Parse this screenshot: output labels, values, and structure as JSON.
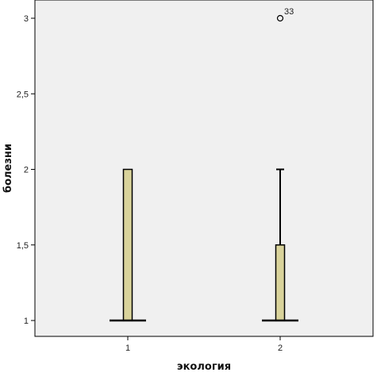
{
  "chart_data": {
    "type": "boxplot",
    "xlabel": "экология",
    "ylabel": "болезни",
    "categories": [
      "1",
      "2"
    ],
    "y_ticks": [
      "1",
      "1,5",
      "2",
      "2,5",
      "3"
    ],
    "y_tick_values": [
      1,
      1.5,
      2,
      2.5,
      3
    ],
    "ylim": [
      0.9,
      3.1
    ],
    "grid": false,
    "boxes": [
      {
        "category": "1",
        "min": 1,
        "q1": 1,
        "median": 1,
        "q3": 2,
        "max": 2,
        "outliers": []
      },
      {
        "category": "2",
        "min": 1,
        "q1": 1,
        "median": 1,
        "q3": 1.5,
        "max": 2,
        "outliers": [
          {
            "value": 3,
            "label": "33"
          }
        ]
      }
    ],
    "colors": {
      "box_fill": "#d9d39b",
      "plot_background": "#f0f0f0",
      "stroke": "#000000"
    }
  }
}
